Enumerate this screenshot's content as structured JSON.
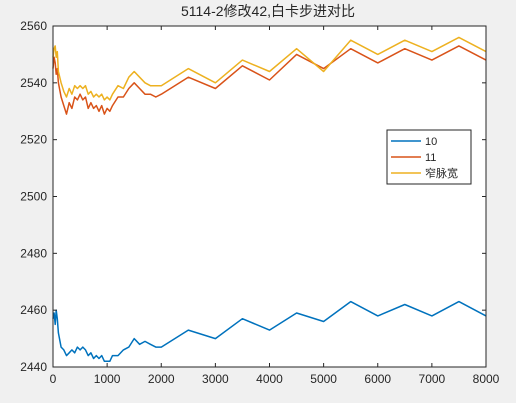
{
  "chart_data": {
    "type": "line",
    "title": "5114-2修改42,白卡步进对比",
    "xlabel": "",
    "ylabel": "",
    "xlim": [
      0,
      8000
    ],
    "ylim": [
      2440,
      2560
    ],
    "xticks": [
      0,
      1000,
      2000,
      3000,
      4000,
      5000,
      6000,
      7000,
      8000
    ],
    "yticks": [
      2440,
      2460,
      2480,
      2500,
      2520,
      2540,
      2560
    ],
    "grid": false,
    "legend_position": "right",
    "series": [
      {
        "name": "10",
        "color": "#0072BD",
        "x": [
          0,
          20,
          40,
          60,
          80,
          100,
          150,
          200,
          250,
          300,
          350,
          400,
          450,
          500,
          550,
          600,
          650,
          700,
          750,
          800,
          850,
          900,
          950,
          1000,
          1050,
          1100,
          1200,
          1300,
          1400,
          1500,
          1600,
          1700,
          1800,
          1900,
          2000,
          2500,
          3000,
          3500,
          4000,
          4500,
          5000,
          5500,
          6000,
          6500,
          7000,
          7500,
          8000
        ],
        "y": [
          2457,
          2459,
          2455,
          2460,
          2457,
          2452,
          2447,
          2446,
          2444,
          2445,
          2446,
          2445,
          2447,
          2446,
          2447,
          2446,
          2444,
          2445,
          2443,
          2444,
          2443,
          2444,
          2442,
          2442,
          2442,
          2444,
          2444,
          2446,
          2447,
          2450,
          2448,
          2449,
          2448,
          2447,
          2447,
          2453,
          2450,
          2457,
          2453,
          2459,
          2456,
          2463,
          2458,
          2462,
          2458,
          2463,
          2458
        ]
      },
      {
        "name": "11",
        "color": "#D95319",
        "x": [
          0,
          20,
          40,
          60,
          80,
          100,
          150,
          200,
          250,
          300,
          350,
          400,
          450,
          500,
          550,
          600,
          650,
          700,
          750,
          800,
          850,
          900,
          950,
          1000,
          1050,
          1100,
          1200,
          1300,
          1400,
          1500,
          1600,
          1700,
          1800,
          1900,
          2000,
          2500,
          3000,
          3500,
          4000,
          4500,
          5000,
          5500,
          6000,
          6500,
          7000,
          7500,
          8000
        ],
        "y": [
          2545,
          2549,
          2547,
          2543,
          2545,
          2540,
          2535,
          2532,
          2529,
          2533,
          2531,
          2535,
          2534,
          2536,
          2534,
          2535,
          2531,
          2533,
          2531,
          2532,
          2530,
          2532,
          2529,
          2531,
          2530,
          2532,
          2535,
          2535,
          2538,
          2540,
          2538,
          2536,
          2536,
          2535,
          2536,
          2542,
          2538,
          2546,
          2541,
          2550,
          2545,
          2552,
          2547,
          2552,
          2548,
          2553,
          2548
        ]
      },
      {
        "name": "窄脉宽",
        "color": "#EDB120",
        "x": [
          0,
          20,
          40,
          60,
          80,
          100,
          150,
          200,
          250,
          300,
          350,
          400,
          450,
          500,
          550,
          600,
          650,
          700,
          750,
          800,
          850,
          900,
          950,
          1000,
          1050,
          1100,
          1200,
          1300,
          1400,
          1500,
          1600,
          1700,
          1800,
          1900,
          2000,
          2500,
          3000,
          3500,
          4000,
          4500,
          5000,
          5500,
          6000,
          6500,
          7000,
          7500,
          8000
        ],
        "y": [
          2549,
          2552,
          2553,
          2549,
          2551,
          2544,
          2540,
          2537,
          2535,
          2538,
          2536,
          2539,
          2538,
          2539,
          2538,
          2539,
          2536,
          2537,
          2535,
          2536,
          2535,
          2536,
          2534,
          2535,
          2534,
          2536,
          2539,
          2538,
          2542,
          2544,
          2542,
          2540,
          2539,
          2539,
          2539,
          2545,
          2540,
          2548,
          2544,
          2552,
          2544,
          2555,
          2550,
          2555,
          2551,
          2556,
          2551
        ]
      }
    ]
  }
}
